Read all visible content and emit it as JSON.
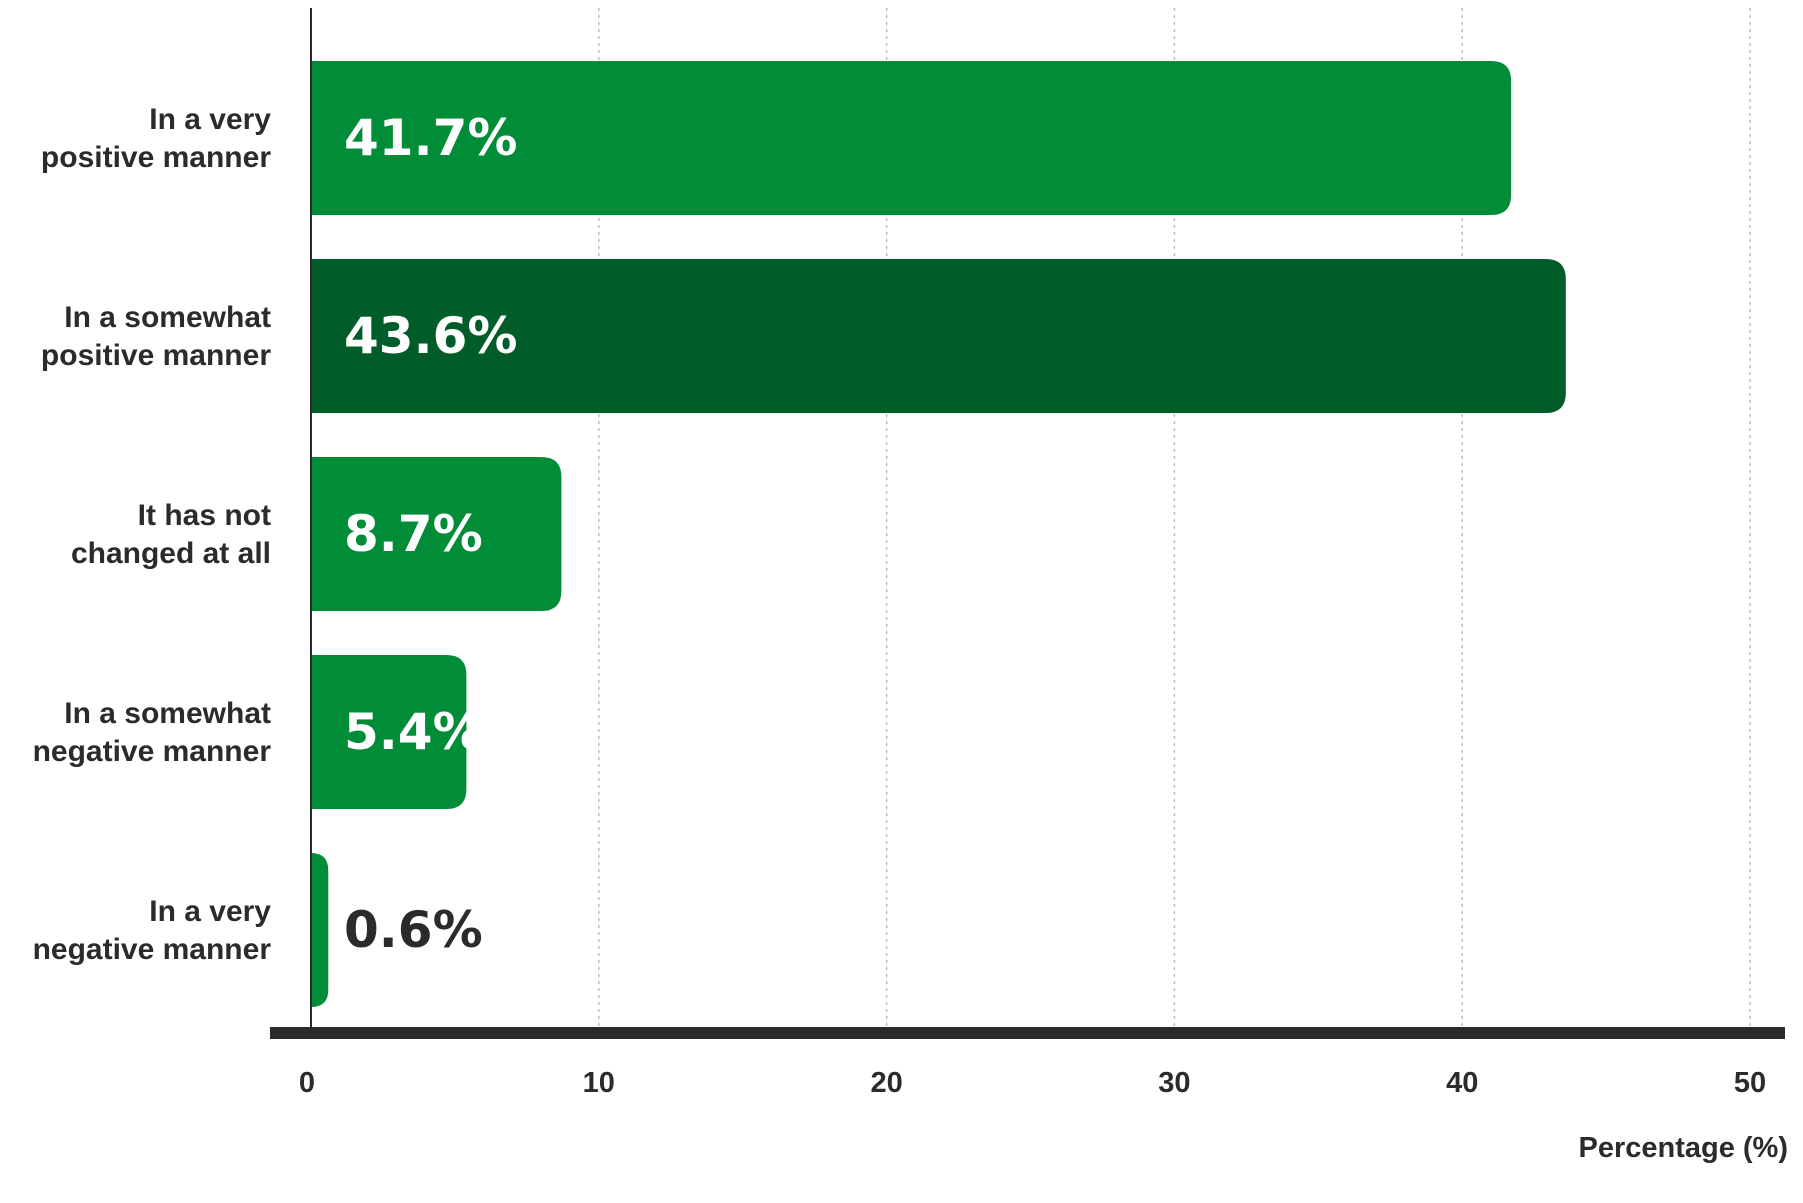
{
  "chart_data": {
    "type": "bar",
    "orientation": "horizontal",
    "categories": [
      [
        "In a very",
        "positive manner"
      ],
      [
        "In a somewhat",
        "positive manner"
      ],
      [
        "It has not",
        "changed at all"
      ],
      [
        "In a somewhat",
        "negative manner"
      ],
      [
        "In a very",
        "negative manner"
      ]
    ],
    "values": [
      41.7,
      43.6,
      8.7,
      5.4,
      0.6
    ],
    "value_labels": [
      "41.7%",
      "43.6%",
      "8.7%",
      "5.4%",
      "0.6%"
    ],
    "bar_colors": [
      "#018c37",
      "#005c28",
      "#018c37",
      "#018c37",
      "#018c37"
    ],
    "label_colors": [
      "#ffffff",
      "#ffffff",
      "#ffffff",
      "#ffffff",
      "#2b2b2b"
    ],
    "xlabel": "Percentage (%)",
    "ylabel": "",
    "title": "",
    "xlim": [
      0,
      50
    ],
    "xticks": [
      0,
      10,
      20,
      30,
      40,
      50
    ],
    "xtick_labels": [
      "0",
      "10",
      "20",
      "30",
      "40",
      "50"
    ],
    "grid": "vertical-dotted",
    "legend": "none",
    "colors": {
      "axis": "#2b2b2b",
      "grid": "#bdbdbd",
      "text": "#2b2b2b"
    }
  }
}
